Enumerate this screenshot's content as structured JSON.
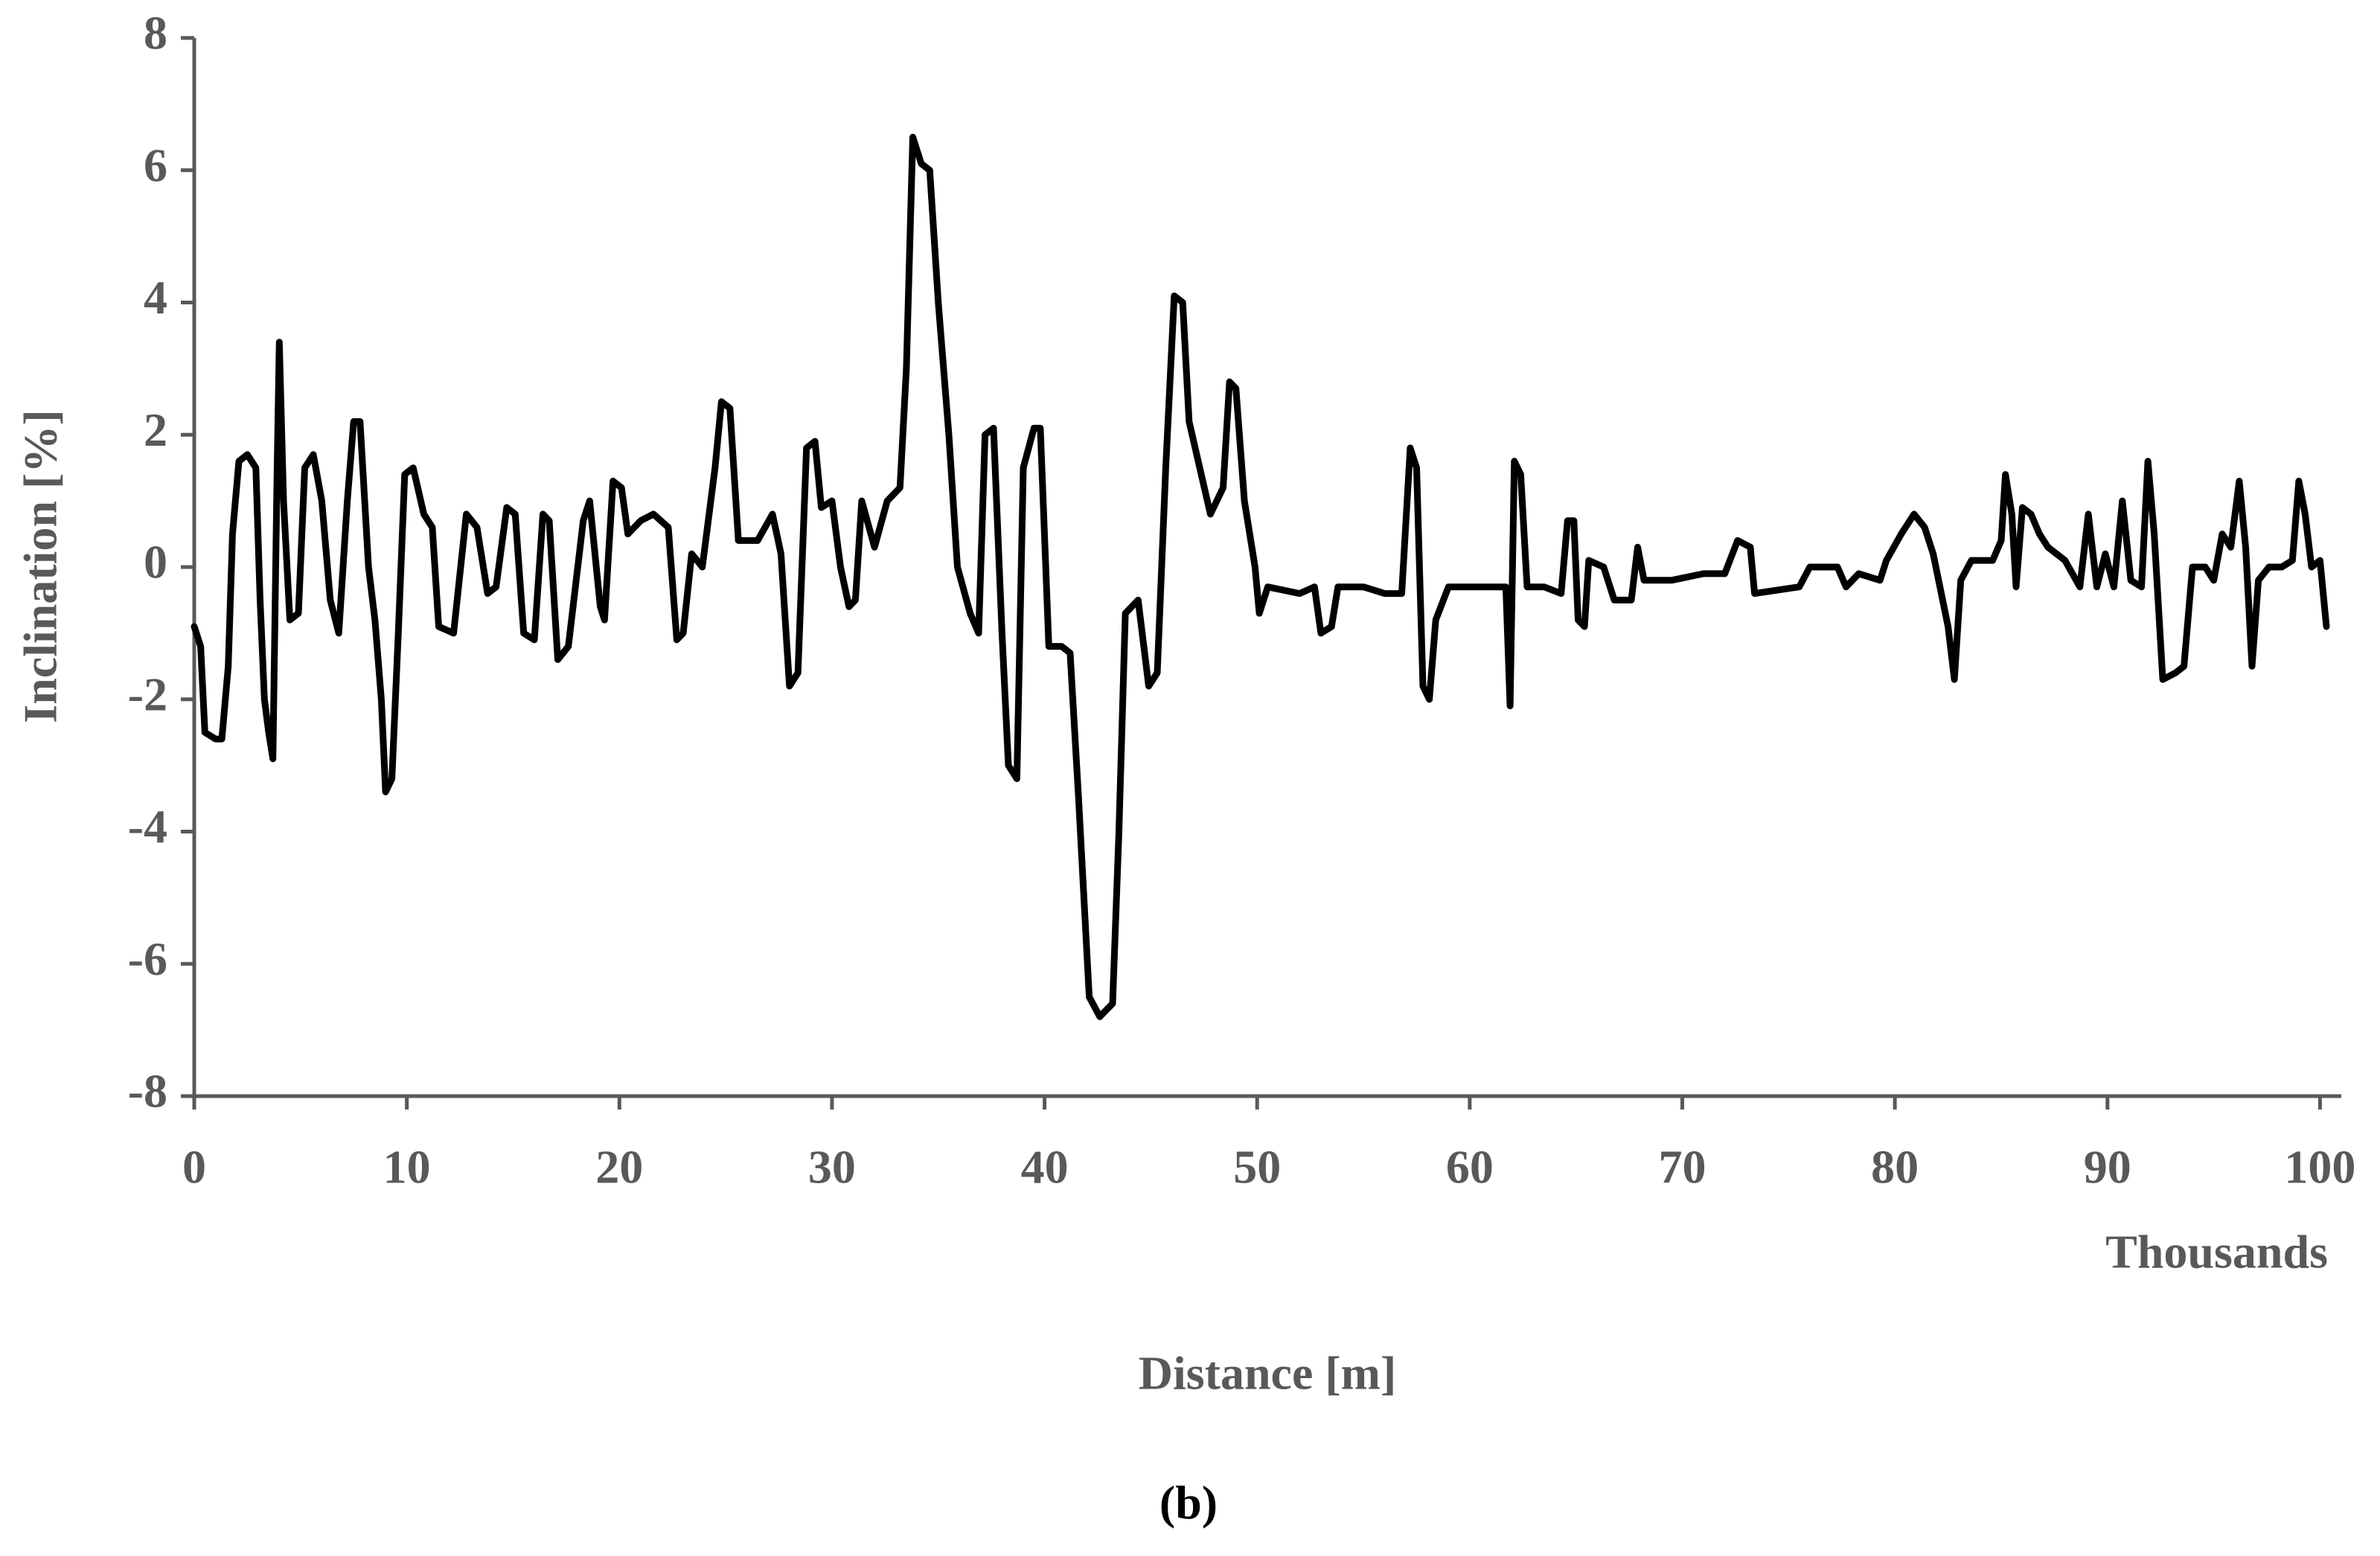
{
  "chart_data": {
    "type": "line",
    "y_label": "Inclination [%]",
    "x_label": "Distance [m]",
    "x_unit_label": "Thousands",
    "caption": "(b)",
    "color": "#000000",
    "xlim": [
      0,
      101
    ],
    "ylim": [
      -8,
      8
    ],
    "xticks": [
      0,
      10,
      20,
      30,
      40,
      50,
      60,
      70,
      80,
      90,
      100
    ],
    "yticks": [
      -8,
      -6,
      -4,
      -2,
      0,
      2,
      4,
      6,
      8
    ],
    "x": [
      0,
      0.3,
      0.5,
      1,
      1.3,
      1.6,
      1.8,
      2.1,
      2.5,
      2.9,
      3.1,
      3.3,
      3.5,
      3.7,
      3.9,
      4.0,
      4.2,
      4.5,
      4.9,
      5.2,
      5.6,
      6,
      6.4,
      6.8,
      7.2,
      7.5,
      7.8,
      8.2,
      8.5,
      8.8,
      9.0,
      9.3,
      9.6,
      9.9,
      10.3,
      10.8,
      11.2,
      11.5,
      12.2,
      12.8,
      13.3,
      13.8,
      14.2,
      14.7,
      15.1,
      15.5,
      16,
      16.4,
      16.7,
      17.1,
      17.6,
      18.3,
      18.6,
      19.1,
      19.3,
      19.7,
      20.1,
      20.4,
      21,
      21.6,
      22.3,
      22.7,
      23.0,
      23.4,
      23.9,
      24.5,
      24.8,
      25.2,
      25.6,
      26.5,
      27.2,
      27.6,
      28.0,
      28.4,
      28.8,
      29.2,
      29.5,
      30,
      30.4,
      30.8,
      31.1,
      31.4,
      32,
      32.6,
      33.2,
      33.5,
      33.8,
      34.2,
      34.6,
      35,
      35.5,
      35.9,
      36.5,
      36.9,
      37.2,
      37.6,
      38.0,
      38.3,
      38.7,
      39,
      39.5,
      39.8,
      40.2,
      40.8,
      41.2,
      41.6,
      42.1,
      42.6,
      43.2,
      43.5,
      43.8,
      44.4,
      44.9,
      45.3,
      45.7,
      46.1,
      46.5,
      46.8,
      47.3,
      47.8,
      48.4,
      48.7,
      49.0,
      49.4,
      49.9,
      50.1,
      50.5,
      52,
      52.7,
      53.0,
      53.5,
      53.8,
      55,
      56,
      56.8,
      57.2,
      57.5,
      57.8,
      58.1,
      58.4,
      59,
      60,
      61,
      61.7,
      61.9,
      62.1,
      62.4,
      62.7,
      63.5,
      64.3,
      64.6,
      64.9,
      65.1,
      65.4,
      65.6,
      66.3,
      66.8,
      67.6,
      67.9,
      68.2,
      69.5,
      71,
      72,
      72.6,
      73.2,
      73.4,
      75.5,
      76,
      77.3,
      77.7,
      78.3,
      79.3,
      79.6,
      80.3,
      80.9,
      81.4,
      81.8,
      82.5,
      82.8,
      83.1,
      83.6,
      84.6,
      85.0,
      85.2,
      85.5,
      85.7,
      86,
      86.4,
      86.8,
      87.2,
      88,
      88.7,
      89.1,
      89.5,
      89.9,
      90.3,
      90.7,
      91.1,
      91.6,
      91.9,
      92.2,
      92.6,
      93.2,
      93.6,
      94.0,
      94.6,
      95.0,
      95.4,
      95.8,
      96.2,
      96.5,
      96.8,
      97.1,
      97.6,
      98.2,
      98.7,
      99,
      99.3,
      99.6,
      100.0,
      100.3
    ],
    "values": [
      -0.9,
      -1.2,
      -2.5,
      -2.6,
      -2.6,
      -1.5,
      0.5,
      1.6,
      1.7,
      1.5,
      -0.5,
      -2,
      -2.5,
      -2.9,
      1.5,
      3.4,
      1,
      -0.8,
      -0.7,
      1.5,
      1.7,
      1,
      -0.5,
      -1,
      1.0,
      2.2,
      2.2,
      0,
      -0.8,
      -2,
      -3.4,
      -3.2,
      -1,
      1.4,
      1.5,
      0.8,
      0.6,
      -0.9,
      -1.0,
      0.8,
      0.6,
      -0.4,
      -0.3,
      0.9,
      0.8,
      -1,
      -1.1,
      0.8,
      0.7,
      -1.4,
      -1.2,
      0.7,
      1,
      -0.6,
      -0.8,
      1.3,
      1.2,
      0.5,
      0.7,
      0.8,
      0.6,
      -1.1,
      -1.0,
      0.2,
      0,
      1.5,
      2.5,
      2.4,
      0.4,
      0.4,
      0.8,
      0.2,
      -1.8,
      -1.6,
      1.8,
      1.9,
      0.9,
      1,
      0,
      -0.6,
      -0.5,
      1,
      0.3,
      1.0,
      1.2,
      3,
      6.5,
      6.1,
      6,
      4,
      2,
      0,
      -0.7,
      -1,
      2,
      2.1,
      -1,
      -3.0,
      -3.2,
      1.5,
      2.1,
      2.1,
      -1.2,
      -1.2,
      -1.3,
      -3.5,
      -6.5,
      -6.8,
      -6.6,
      -4,
      -0.7,
      -0.5,
      -1.8,
      -1.6,
      1.5,
      4.1,
      4,
      2.2,
      1.5,
      0.8,
      1.2,
      2.8,
      2.7,
      1.0,
      0,
      -0.7,
      -0.3,
      -0.4,
      -0.3,
      -1.0,
      -0.9,
      -0.3,
      -0.3,
      -0.4,
      -0.4,
      1.8,
      1.5,
      -1.8,
      -2.0,
      -0.8,
      -0.3,
      -0.3,
      -0.3,
      -0.3,
      -2.1,
      1.6,
      1.4,
      -0.3,
      -0.3,
      -0.4,
      0.7,
      0.7,
      -0.8,
      -0.9,
      0.1,
      0,
      -0.5,
      -0.5,
      0.3,
      -0.2,
      -0.2,
      -0.1,
      -0.1,
      0.4,
      0.3,
      -0.4,
      -0.3,
      0,
      0,
      -0.3,
      -0.1,
      -0.2,
      0.1,
      0.5,
      0.8,
      0.6,
      0.2,
      -0.9,
      -1.7,
      -0.2,
      0.1,
      0.1,
      0.4,
      1.4,
      0.8,
      -0.3,
      0.9,
      0.8,
      0.5,
      0.3,
      0.1,
      -0.3,
      0.8,
      -0.3,
      0.2,
      -0.3,
      1.0,
      -0.2,
      -0.3,
      1.6,
      0.5,
      -1.7,
      -1.6,
      -1.5,
      0,
      0,
      -0.2,
      0.5,
      0.3,
      1.3,
      0.3,
      -1.5,
      -0.2,
      0,
      0,
      0.1,
      1.3,
      0.8,
      0,
      0.1,
      -0.9
    ]
  }
}
